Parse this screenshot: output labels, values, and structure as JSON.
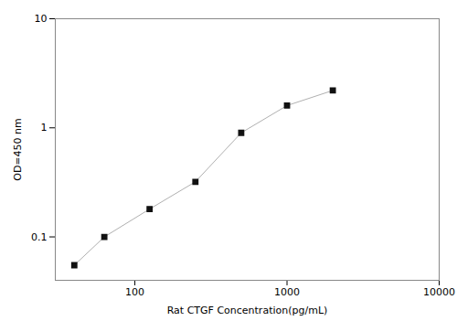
{
  "chart_data": {
    "type": "line",
    "x": [
      40,
      63,
      125,
      250,
      500,
      1000,
      2000
    ],
    "values": [
      0.055,
      0.1,
      0.18,
      0.32,
      0.9,
      1.6,
      2.2
    ],
    "xlabel": "Rat CTGF Concentration(pg/mL)",
    "ylabel": "OD=450 nm",
    "xlim": [
      30,
      10000
    ],
    "ylim": [
      0.04,
      10
    ],
    "xticks": [
      100,
      1000,
      10000
    ],
    "yticks": [
      0.1,
      1,
      10
    ],
    "log": true,
    "grid": false,
    "color": "#b0b0b0",
    "colors": [
      "#111111",
      "#111111",
      "#111111",
      "#111111",
      "#111111",
      "#111111",
      "#111111"
    ],
    "marker": "square"
  }
}
